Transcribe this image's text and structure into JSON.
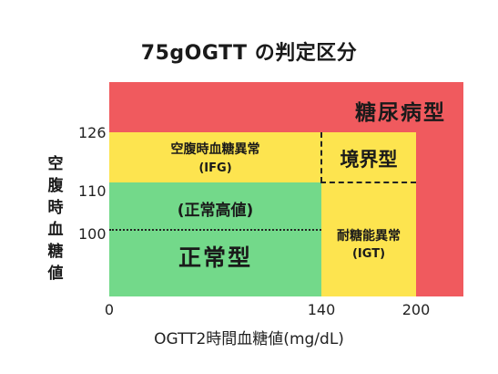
{
  "title": "75gOGTT の判定区分",
  "y_axis_label": [
    "空",
    "腹",
    "時",
    "血",
    "糖",
    "値"
  ],
  "x_axis_label": "OGTT2時間血糖値(mg/dL)",
  "y_ticks": [
    "126",
    "110",
    "100"
  ],
  "x_ticks": [
    "0",
    "140",
    "200"
  ],
  "zones": {
    "diabetes": "糖尿病型",
    "borderline": "境界型",
    "ifg_line1": "空腹時血糖異常",
    "ifg_line2": "(IFG)",
    "normal_high": "(正常高値)",
    "normal": "正常型",
    "igt_line1": "耐糖能異常",
    "igt_line2": "(IGT)"
  },
  "colors": {
    "diabetes": "#f05a5e",
    "borderline": "#fde44f",
    "normal": "#73d98a"
  }
}
